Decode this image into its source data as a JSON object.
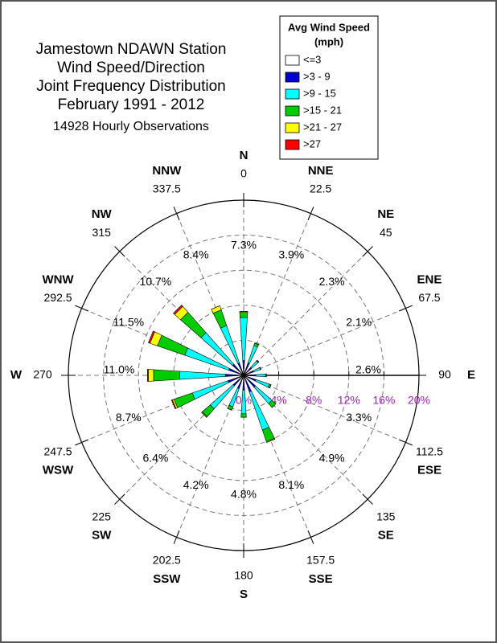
{
  "chart_data": {
    "type": "windrose",
    "title": [
      "Jamestown NDAWN Station",
      "Wind Speed/Direction",
      "Joint Frequency Distribution",
      "February 1991 - 2012"
    ],
    "subtitle": "14928 Hourly Observations",
    "legend_title": [
      "Avg Wind Speed",
      "(mph)"
    ],
    "directions": [
      "N",
      "NNE",
      "NE",
      "ENE",
      "E",
      "ESE",
      "SE",
      "SSE",
      "S",
      "SSW",
      "SW",
      "WSW",
      "W",
      "WNW",
      "NW",
      "NNW"
    ],
    "angles": [
      0,
      22.5,
      45,
      67.5,
      90,
      112.5,
      135,
      157.5,
      180,
      202.5,
      225,
      247.5,
      270,
      292.5,
      315,
      337.5
    ],
    "totals": [
      7.3,
      3.9,
      2.3,
      2.1,
      2.6,
      3.3,
      4.9,
      8.1,
      4.8,
      4.2,
      6.4,
      8.7,
      11.0,
      11.5,
      10.7,
      8.4
    ],
    "total_labels": [
      "7.3%",
      "3.9%",
      "2.3%",
      "2.1%",
      "2.6%",
      "3.3%",
      "4.9%",
      "8.1%",
      "4.8%",
      "4.2%",
      "6.4%",
      "8.7%",
      "11.0%",
      "11.5%",
      "10.7%",
      "8.4%"
    ],
    "series": [
      {
        "name": "<=3",
        "color": "#ffffff",
        "values": [
          0.1,
          0.1,
          0.1,
          0.1,
          0.1,
          0.1,
          0.1,
          0.1,
          0.1,
          0.1,
          0.1,
          0.1,
          0.1,
          0.1,
          0.1,
          0.1
        ]
      },
      {
        "name": ">3 - 9",
        "color": "#0000cc",
        "values": [
          1.6,
          1.4,
          1.1,
          1.1,
          1.3,
          1.4,
          1.7,
          1.9,
          1.6,
          1.5,
          1.5,
          1.8,
          2.0,
          1.7,
          1.6,
          1.4
        ]
      },
      {
        "name": ">9 - 15",
        "color": "#00ffff",
        "values": [
          4.9,
          2.1,
          1.0,
          0.8,
          1.1,
          1.6,
          2.5,
          4.6,
          2.7,
          2.2,
          3.5,
          4.3,
          5.2,
          5.3,
          4.8,
          4.5
        ]
      },
      {
        "name": ">15 - 21",
        "color": "#00cc00",
        "values": [
          0.6,
          0.3,
          0.1,
          0.1,
          0.1,
          0.2,
          0.6,
          1.4,
          0.4,
          0.4,
          1.2,
          2.2,
          3.0,
          3.3,
          3.1,
          1.9
        ]
      },
      {
        "name": ">21 - 27",
        "color": "#ffff00",
        "values": [
          0.1,
          0.0,
          0.0,
          0.0,
          0.0,
          0.0,
          0.0,
          0.1,
          0.0,
          0.0,
          0.1,
          0.2,
          0.6,
          0.9,
          0.9,
          0.5
        ]
      },
      {
        "name": ">27",
        "color": "#ff0000",
        "values": [
          0.0,
          0.0,
          0.0,
          0.0,
          0.0,
          0.0,
          0.0,
          0.0,
          0.0,
          0.0,
          0.0,
          0.1,
          0.1,
          0.2,
          0.2,
          0.0
        ]
      }
    ],
    "rlim": [
      0,
      20
    ],
    "rticks": [
      {
        "value": 0,
        "label": "0%"
      },
      {
        "value": 4,
        "label": "4%"
      },
      {
        "value": 8,
        "label": "8%"
      },
      {
        "value": 12,
        "label": "12%"
      },
      {
        "value": 16,
        "label": "16%"
      },
      {
        "value": 20,
        "label": "20%"
      }
    ],
    "rtick_color": "#a020c0",
    "grid": true
  }
}
